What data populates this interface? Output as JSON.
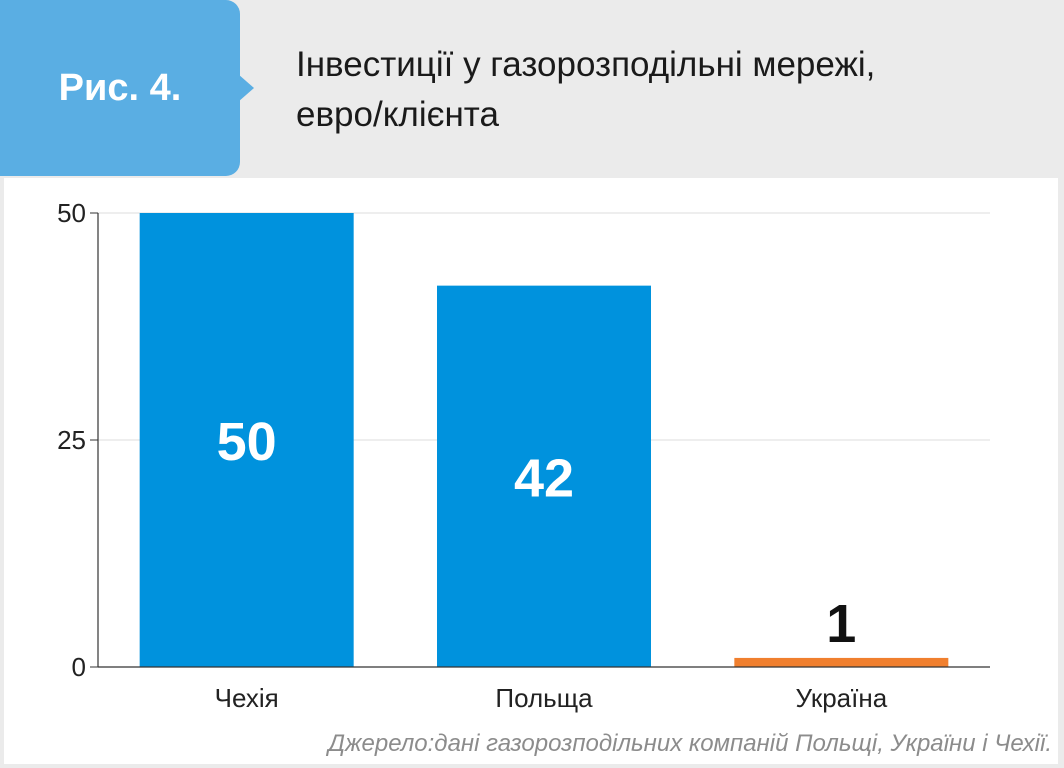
{
  "figure": {
    "badge_label": "Рис. 4.",
    "title_line1": "Інвестиції у газорозподільні мережі,",
    "title_line2": "евро/клієнта",
    "source": "Джерело:дані газорозподільних компаній Польщі, України і Чехії."
  },
  "colors": {
    "badge": "#5aaee3",
    "bar_default": "#0092dd",
    "bar_highlight": "#f07f2e",
    "label_inside": "#ffffff",
    "label_outside": "#111111"
  },
  "chart_data": {
    "type": "bar",
    "categories": [
      "Чехія",
      "Польща",
      "Україна"
    ],
    "values": [
      50,
      42,
      1
    ],
    "data_labels": [
      "50",
      "42",
      "1"
    ],
    "highlight_index": 2,
    "ylim": [
      0,
      50
    ],
    "yticks": [
      0,
      25,
      50
    ],
    "ytick_labels": [
      "0",
      "25",
      "50"
    ],
    "grid": true,
    "legend": "none"
  }
}
